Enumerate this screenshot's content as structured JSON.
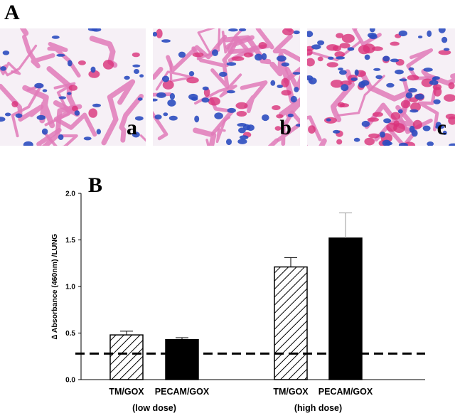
{
  "panels": {
    "A": "A",
    "B": "B",
    "micrographs": [
      "a",
      "b",
      "c"
    ]
  },
  "colors": {
    "tissue_pink": "#e07ab8",
    "nuclei_blue": "#2c4cc0",
    "background": "#f6f0f6",
    "threshold_line": "#000000"
  },
  "chart_data": {
    "type": "bar",
    "ylabel": "∆ Absorbance (460nm) /LUNG",
    "ylim": [
      0.0,
      2.0
    ],
    "yticks": [
      "0.0",
      "0.5",
      "1.0",
      "1.5",
      "2.0"
    ],
    "groups": [
      {
        "label": "(low dose)",
        "bars": [
          {
            "category": "TM/GOX",
            "value": 0.48,
            "error": 0.04,
            "fill": "hatched"
          },
          {
            "category": "PECAM/GOX",
            "value": 0.43,
            "error": 0.02,
            "fill": "solid"
          }
        ]
      },
      {
        "label": "(high dose)",
        "bars": [
          {
            "category": "TM/GOX",
            "value": 1.21,
            "error": 0.1,
            "fill": "hatched"
          },
          {
            "category": "PECAM/GOX",
            "value": 1.52,
            "error": 0.27,
            "fill": "solid"
          }
        ]
      }
    ],
    "reference_line": {
      "value": 0.28,
      "style": "dashed"
    }
  }
}
